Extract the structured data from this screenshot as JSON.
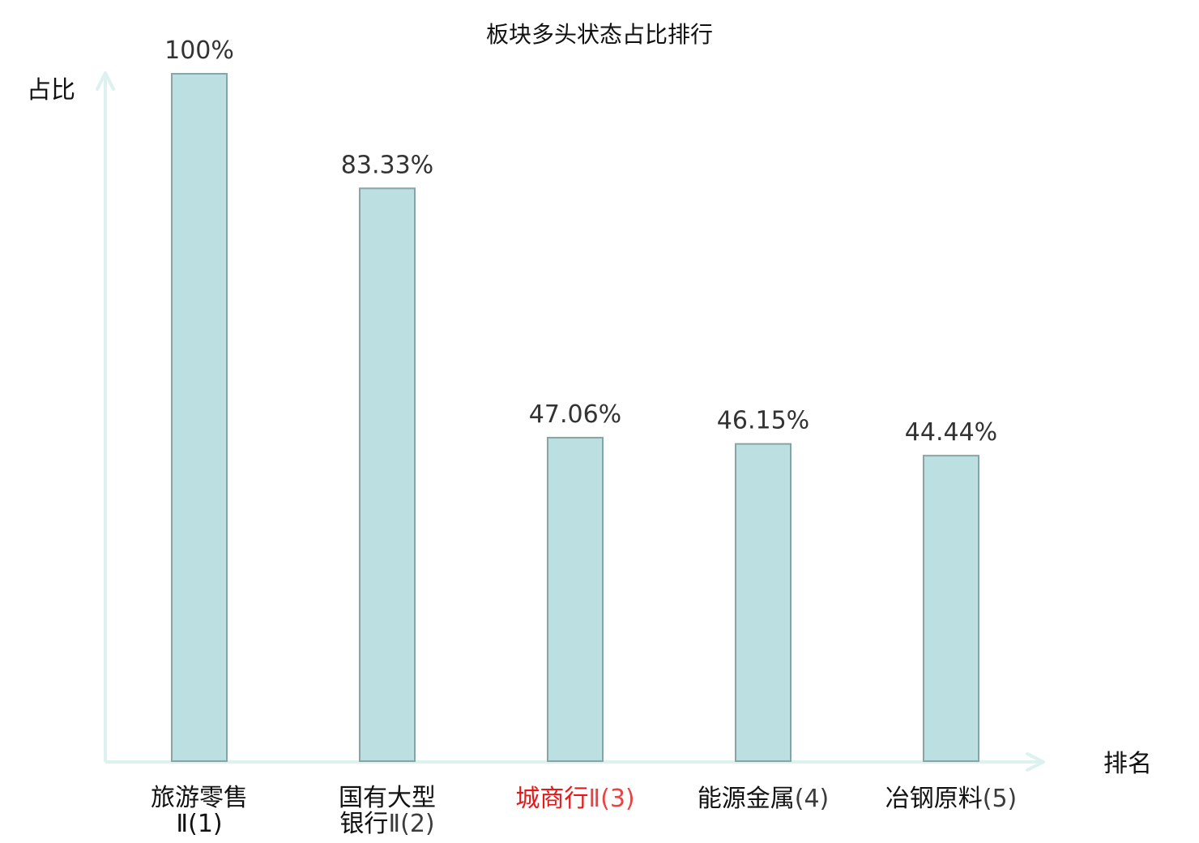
{
  "chart_data": {
    "type": "bar",
    "title": "板块多头状态占比排行",
    "ylabel": "占比",
    "xlabel": "排名",
    "ylim": [
      0,
      100
    ],
    "grid": false,
    "legend": "none",
    "categories": [
      "旅游零售Ⅱ(1)",
      "国有大型银行Ⅱ(2)",
      "城商行Ⅱ(3)",
      "能源金属(4)",
      "冶钢原料(5)"
    ],
    "category_lines": [
      [
        "旅游零售",
        "Ⅱ(1)"
      ],
      [
        "国有大型",
        "银行Ⅱ(2)"
      ],
      [
        "城商行Ⅱ(3)"
      ],
      [
        "能源金属(4)"
      ],
      [
        "冶钢原料(5)"
      ]
    ],
    "values": [
      100,
      83.33,
      47.06,
      46.15,
      44.44
    ],
    "data_labels": [
      "100%",
      "83.33%",
      "47.06%",
      "46.15%",
      "44.44%"
    ],
    "highlight_index": 2,
    "colors": {
      "bar_fill": "#bce0e1",
      "bar_stroke": "#85a5a6",
      "axis": "#ddf1ef",
      "highlight_text": "#e41a1a",
      "normal_text": "#111111"
    }
  }
}
